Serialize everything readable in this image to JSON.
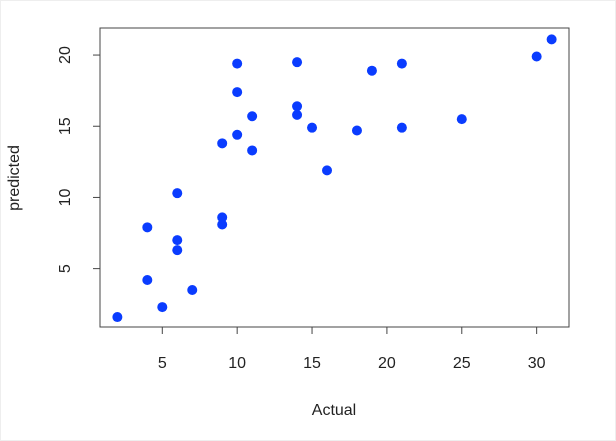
{
  "chart_data": {
    "type": "scatter",
    "x_label": "Actual",
    "y_label": "predicted",
    "color": "#0a3cff",
    "x": [
      2,
      4,
      4,
      5,
      6,
      6,
      6,
      7,
      9,
      9,
      9,
      10,
      10,
      10,
      11,
      11,
      14,
      14,
      14,
      15,
      16,
      18,
      19,
      21,
      21,
      25,
      30,
      31
    ],
    "values": [
      1.6,
      7.9,
      4.2,
      2.3,
      10.3,
      7.0,
      6.3,
      3.5,
      13.8,
      8.6,
      8.1,
      19.4,
      17.4,
      14.4,
      15.7,
      13.3,
      19.5,
      16.4,
      15.8,
      14.9,
      11.9,
      14.7,
      18.9,
      19.4,
      14.9,
      15.5,
      19.9,
      21.1
    ],
    "xlim": [
      0.84,
      32.16
    ],
    "ylim": [
      0.9,
      21.9
    ],
    "xticks": [
      5,
      10,
      15,
      20,
      25,
      30
    ],
    "yticks": [
      5,
      10,
      15,
      20
    ]
  }
}
